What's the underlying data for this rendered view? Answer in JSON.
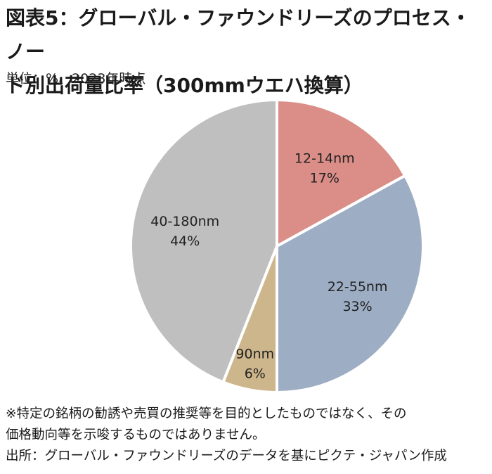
{
  "header": {
    "title_line1": "図表5：グローバル・ファウンドリーズのプロセス・ノー",
    "title_line2": "ド別出荷量比率（300mmウエハ換算）",
    "unit": "単位：%、2023年時点"
  },
  "chart_data": {
    "type": "pie",
    "title": "図表5：グローバル・ファウンドリーズのプロセス・ノード別出荷量比率（300mmウエハ換算）",
    "unit": "単位：%、2023年時点",
    "start": "12 o'clock, clockwise",
    "slices": [
      {
        "label": "12-14nm",
        "value": 17,
        "value_label": "17%",
        "color": "#DA8E87"
      },
      {
        "label": "22-55nm",
        "value": 33,
        "value_label": "33%",
        "color": "#9DADC3"
      },
      {
        "label": "90nm",
        "value": 6,
        "value_label": "6%",
        "color": "#CDB68B"
      },
      {
        "label": "40-180nm",
        "value": 44,
        "value_label": "44%",
        "color": "#BFBFBF"
      }
    ]
  },
  "footnote": {
    "line1": "※特定の銘柄の勧誘や売買の推奨等を目的としたものではなく、その",
    "line2": "価格動向等を示唆するものではありません。",
    "line3": "出所：グローバル・ファウンドリーズのデータを基にピクテ・ジャパン作成"
  }
}
